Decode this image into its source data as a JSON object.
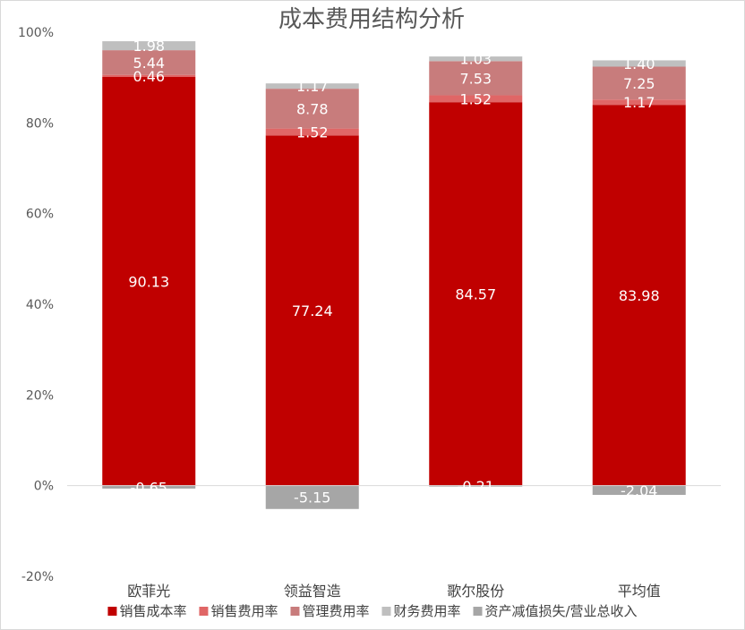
{
  "chart_data": {
    "type": "bar",
    "stacked": true,
    "title": "成本费用结构分析",
    "xlabel": "",
    "ylabel": "",
    "categories": [
      "欧菲光",
      "领益智造",
      "歌尔股份",
      "平均值"
    ],
    "y_ticks": [
      "100%",
      "80%",
      "60%",
      "40%",
      "20%",
      "0%",
      "-20%"
    ],
    "ylim": [
      -20,
      100
    ],
    "grid": false,
    "legend_position": "bottom",
    "series": [
      {
        "name": "销售成本率",
        "color": "#C00000",
        "values": [
          90.13,
          77.24,
          84.57,
          83.98
        ],
        "labels": [
          "90.13",
          "77.24",
          "84.57",
          "83.98"
        ]
      },
      {
        "name": "销售费用率",
        "color": "#E06666",
        "values": [
          0.46,
          1.52,
          1.52,
          1.17
        ],
        "labels": [
          "0.46",
          "1.52",
          "1.52",
          "1.17"
        ]
      },
      {
        "name": "管理费用率",
        "color": "#C87C7C",
        "values": [
          5.44,
          8.78,
          7.53,
          7.25
        ],
        "labels": [
          "5.44",
          "8.78",
          "7.53",
          "7.25"
        ]
      },
      {
        "name": "财务费用率",
        "color": "#BFBFBF",
        "values": [
          1.98,
          1.17,
          1.03,
          1.4
        ],
        "labels": [
          "1.98",
          "1.17",
          "1.03",
          "1.40"
        ]
      },
      {
        "name": "资产减值损失/营业总收入",
        "color": "#A6A6A6",
        "values": [
          -0.65,
          -5.15,
          -0.21,
          -2.04
        ],
        "labels": [
          "-0.65",
          "-5.15",
          "-0.21",
          "-2.04"
        ]
      }
    ]
  }
}
